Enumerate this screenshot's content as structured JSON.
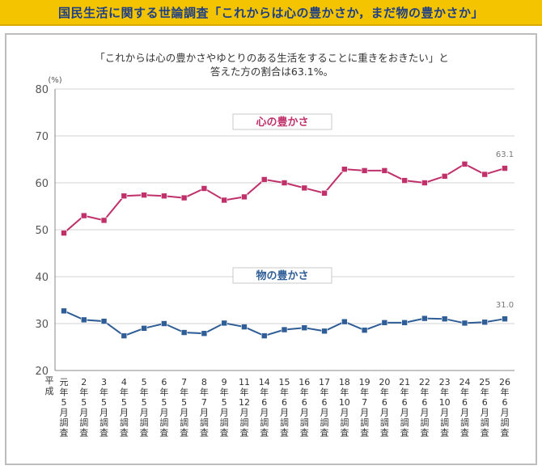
{
  "header": {
    "title": "国民生活に関する世論調査「これからは心の豊かさか，まだ物の豊かさか」"
  },
  "chart_data": {
    "type": "line",
    "title_lines": [
      "「これからは心の豊かさやゆとりのある生活をすることに重きをおきたい」と",
      "答えた方の割合は63.1%。"
    ],
    "ylabel": "(%)",
    "ylim": [
      20,
      80
    ],
    "yticks": [
      20,
      30,
      40,
      50,
      60,
      70,
      80
    ],
    "era_label": "平成",
    "grid": true,
    "categories": [
      "元年5月調査",
      "2年5月調査",
      "3年5月調査",
      "4年5月調査",
      "5年5月調査",
      "6年5月調査",
      "7年5月調査",
      "8年7月調査",
      "9年5月調査",
      "11年12月調査",
      "14年6月調査",
      "15年6月調査",
      "16年6月調査",
      "17年6月調査",
      "18年10月調査",
      "19年7月調査",
      "20年6月調査",
      "21年6月調査",
      "22年6月調査",
      "23年10月調査",
      "24年6月調査",
      "25年6月調査",
      "26年6月調査"
    ],
    "series": [
      {
        "name": "心の豊かさ",
        "color": "#c0306a",
        "values": [
          49.3,
          53.0,
          52.0,
          57.2,
          57.4,
          57.2,
          56.8,
          58.8,
          56.3,
          57.0,
          60.7,
          60.0,
          58.9,
          57.8,
          62.9,
          62.6,
          62.6,
          60.5,
          60.0,
          61.4,
          64.0,
          61.8,
          63.1
        ],
        "end_label": "63.1"
      },
      {
        "name": "物の豊かさ",
        "color": "#2f5d96",
        "values": [
          32.7,
          30.8,
          30.5,
          27.4,
          29.0,
          30.0,
          28.1,
          27.9,
          30.1,
          29.3,
          27.4,
          28.7,
          29.1,
          28.4,
          30.4,
          28.6,
          30.2,
          30.2,
          31.1,
          31.0,
          30.1,
          30.3,
          31.0
        ],
        "end_label": "31.0"
      }
    ]
  }
}
